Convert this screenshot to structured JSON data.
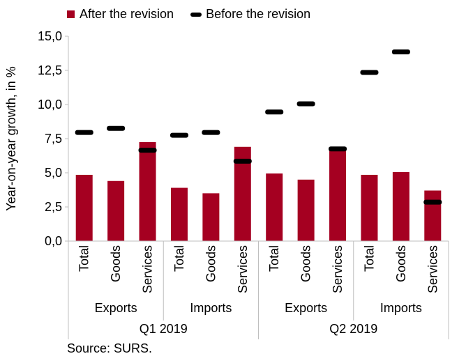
{
  "chart_data": {
    "type": "bar",
    "ylabel": "Year-on-year growth, in %",
    "ylim": [
      0,
      15
    ],
    "yticks": [
      "0,0",
      "2,5",
      "5,0",
      "7,5",
      "10,0",
      "12,5",
      "15,0"
    ],
    "categories": [
      "Total",
      "Goods",
      "Services",
      "Total",
      "Goods",
      "Services",
      "Total",
      "Goods",
      "Services",
      "Total",
      "Goods",
      "Services"
    ],
    "groups": [
      {
        "label": "Exports",
        "span": [
          0,
          2
        ]
      },
      {
        "label": "Imports",
        "span": [
          3,
          5
        ]
      },
      {
        "label": "Exports",
        "span": [
          6,
          8
        ]
      },
      {
        "label": "Imports",
        "span": [
          9,
          11
        ]
      }
    ],
    "periods": [
      {
        "label": "Q1 2019",
        "span": [
          0,
          5
        ]
      },
      {
        "label": "Q2 2019",
        "span": [
          6,
          11
        ]
      }
    ],
    "series": [
      {
        "name": "After the revision",
        "kind": "bar",
        "color": "#A50021",
        "values": [
          4.85,
          4.4,
          7.25,
          3.9,
          3.5,
          6.9,
          4.95,
          4.5,
          6.7,
          4.85,
          5.05,
          3.7
        ]
      },
      {
        "name": "Before the revision",
        "kind": "marker",
        "color": "#000000",
        "values": [
          7.95,
          8.25,
          6.65,
          7.75,
          7.95,
          5.85,
          9.45,
          10.05,
          6.75,
          12.35,
          13.85,
          2.85
        ]
      }
    ],
    "grid": false,
    "legend": "top"
  },
  "source": "Source: SURS."
}
